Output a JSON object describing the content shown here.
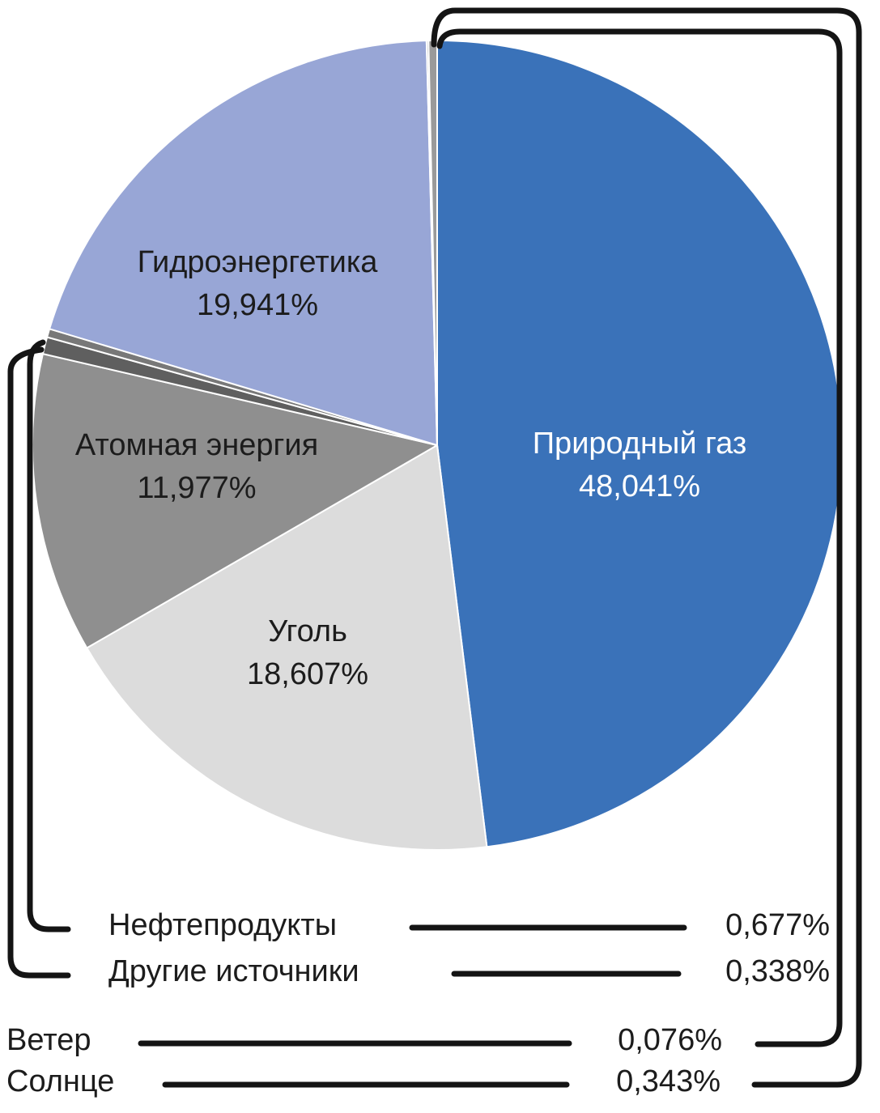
{
  "chart_data": {
    "type": "pie",
    "title": "",
    "unit": "%",
    "start_angle_deg": -90,
    "direction": "clockwise",
    "legend_position": "none",
    "labels_on_slices": true,
    "decimal_separator": ",",
    "line_color": "#141414",
    "slices": [
      {
        "label": "Природный газ",
        "value": 48.041,
        "display": "48,041%",
        "color": "#3a72b9",
        "label_style": "inside-white"
      },
      {
        "label": "Уголь",
        "value": 18.607,
        "display": "18,607%",
        "color": "#dcdcdc",
        "label_style": "inside-dark"
      },
      {
        "label": "Атомная энергия",
        "value": 11.977,
        "display": "11,977%",
        "color": "#8f8f8f",
        "label_style": "inside-dark"
      },
      {
        "label": "Нефтепродукты",
        "value": 0.677,
        "display": "0,677%",
        "color": "#5f5f5f",
        "label_style": "callout"
      },
      {
        "label": "Другие источники",
        "value": 0.338,
        "display": "0,338%",
        "color": "#787878",
        "label_style": "callout"
      },
      {
        "label": "Гидроэнергетика",
        "value": 19.941,
        "display": "19,941%",
        "color": "#98a6d6",
        "label_style": "inside-dark"
      },
      {
        "label": "Ветер",
        "value": 0.076,
        "display": "0,076%",
        "color": "#8a8a8a",
        "label_style": "callout"
      },
      {
        "label": "Солнце",
        "value": 0.343,
        "display": "0,343%",
        "color": "#9a9a9a",
        "label_style": "callout"
      }
    ]
  }
}
